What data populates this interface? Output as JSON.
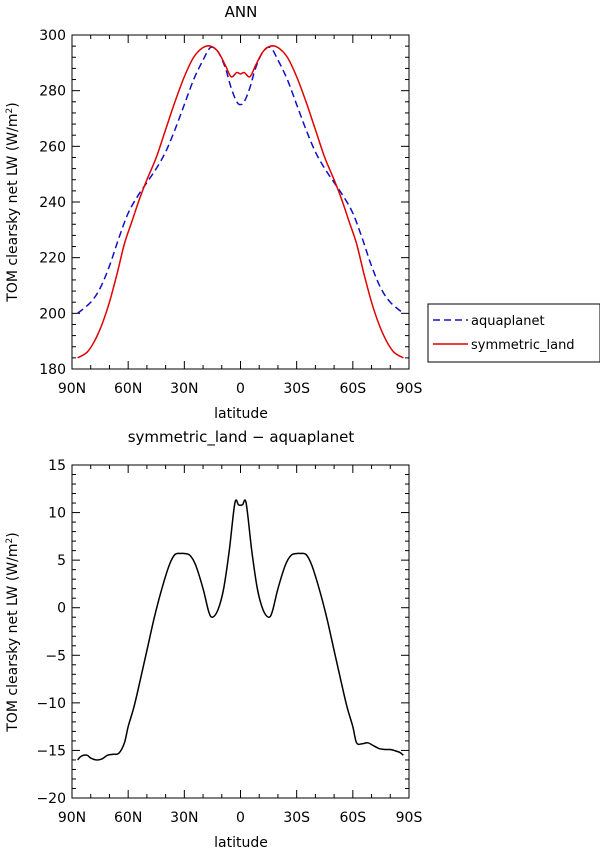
{
  "chart_data": [
    {
      "type": "line",
      "title": "ANN",
      "xlabel": "latitude",
      "ylabel": "TOM clearsky net LW (W/m²)",
      "ylabel_main": "TOM clearsky net LW (W/m",
      "ylabel_sup": "2",
      "ylabel_end": ")",
      "xlim": [
        -90,
        90
      ],
      "ylim": [
        180,
        300
      ],
      "x_ticks": [
        -90,
        -60,
        -30,
        0,
        30,
        60,
        90
      ],
      "x_tick_labels": [
        "90N",
        "60N",
        "30N",
        "0",
        "30S",
        "60S",
        "90S"
      ],
      "y_ticks": [
        180,
        200,
        220,
        240,
        260,
        280,
        300
      ],
      "y_tick_labels": [
        "180",
        "200",
        "220",
        "240",
        "260",
        "280",
        "300"
      ],
      "legend": {
        "placement": "right",
        "entries": [
          {
            "name": "aquaplanet",
            "color": "#1010c8",
            "dash": true
          },
          {
            "name": "symmetric_land",
            "color": "#e00000",
            "dash": false
          }
        ]
      },
      "series": [
        {
          "name": "aquaplanet",
          "color": "#1010c8",
          "dash": true,
          "x": [
            -87,
            -80,
            -75,
            -70,
            -65,
            -60,
            -55,
            -50,
            -45,
            -40,
            -35,
            -30,
            -25,
            -20,
            -16,
            -12,
            -8,
            -5,
            -2,
            0,
            2,
            5,
            8,
            12,
            16,
            20,
            25,
            30,
            35,
            40,
            45,
            50,
            55,
            60,
            65,
            70,
            75,
            80,
            87
          ],
          "y": [
            200,
            204,
            209,
            217,
            227,
            236,
            242,
            247,
            252,
            258,
            266,
            275,
            284,
            291,
            295.5,
            294,
            288,
            281,
            276,
            275,
            276,
            281,
            288,
            294,
            295.5,
            291,
            284,
            275,
            266,
            258,
            252,
            247,
            242,
            236,
            227,
            217,
            209,
            204,
            200
          ]
        },
        {
          "name": "symmetric_land",
          "color": "#e00000",
          "dash": false,
          "x": [
            -87,
            -82,
            -78,
            -74,
            -70,
            -66,
            -62,
            -58,
            -54,
            -50,
            -45,
            -40,
            -35,
            -30,
            -25,
            -20,
            -16,
            -12,
            -8,
            -5,
            -2,
            0,
            2,
            5,
            8,
            12,
            16,
            20,
            25,
            30,
            35,
            40,
            45,
            50,
            54,
            58,
            62,
            66,
            70,
            74,
            78,
            82,
            87
          ],
          "y": [
            184,
            186,
            190,
            196,
            204,
            214,
            225,
            233,
            241,
            248,
            256,
            266,
            276,
            285,
            292,
            295.5,
            296,
            294,
            289,
            285,
            286.5,
            286,
            286.5,
            285,
            289,
            294,
            296,
            295.5,
            292,
            285,
            276,
            266,
            256,
            248,
            241,
            233,
            225,
            214,
            204,
            196,
            190,
            186,
            184
          ]
        }
      ]
    },
    {
      "type": "line",
      "title": "symmetric_land − aquaplanet",
      "xlabel": "latitude",
      "ylabel": "TOM clearsky net LW (W/m²)",
      "ylabel_main": "TOM clearsky net LW (W/m",
      "ylabel_sup": "2",
      "ylabel_end": ")",
      "xlim": [
        -90,
        90
      ],
      "ylim": [
        -20,
        15
      ],
      "x_ticks": [
        -90,
        -60,
        -30,
        0,
        30,
        60,
        90
      ],
      "x_tick_labels": [
        "90N",
        "60N",
        "30N",
        "0",
        "30S",
        "60S",
        "90S"
      ],
      "y_ticks": [
        -20,
        -15,
        -10,
        -5,
        0,
        5,
        10,
        15
      ],
      "y_tick_labels": [
        "−20",
        "−15",
        "−10",
        "−5",
        "0",
        "5",
        "10",
        "15"
      ],
      "series": [
        {
          "color": "#000000",
          "dash": false,
          "x": [
            -87,
            -85,
            -82,
            -80,
            -77,
            -74,
            -71,
            -68,
            -65,
            -62,
            -60,
            -57,
            -54,
            -50,
            -46,
            -42,
            -38,
            -35,
            -32,
            -30,
            -27,
            -24,
            -20,
            -17,
            -15,
            -12,
            -9,
            -6,
            -3,
            -1,
            1,
            3,
            6,
            9,
            12,
            15,
            17,
            20,
            24,
            27,
            30,
            32,
            35,
            38,
            42,
            46,
            50,
            54,
            57,
            60,
            62,
            65,
            68,
            71,
            74,
            77,
            80,
            82,
            85,
            87
          ],
          "y": [
            -16,
            -15.6,
            -15.5,
            -15.8,
            -16,
            -15.9,
            -15.5,
            -15.4,
            -15.3,
            -14.2,
            -12.5,
            -10.5,
            -8,
            -4.5,
            -1,
            2,
            4.5,
            5.6,
            5.7,
            5.7,
            5.5,
            4.5,
            2,
            -0.4,
            -1,
            -0.2,
            2,
            6,
            11,
            10.8,
            10.8,
            11,
            6,
            2,
            -0.2,
            -1,
            -0.4,
            2,
            4.5,
            5.5,
            5.7,
            5.7,
            5.6,
            4.5,
            2,
            -1,
            -4.5,
            -8,
            -10.5,
            -12.5,
            -14.2,
            -14.3,
            -14.2,
            -14.5,
            -14.8,
            -14.9,
            -14.9,
            -15,
            -15.2,
            -15.5
          ]
        }
      ]
    }
  ]
}
